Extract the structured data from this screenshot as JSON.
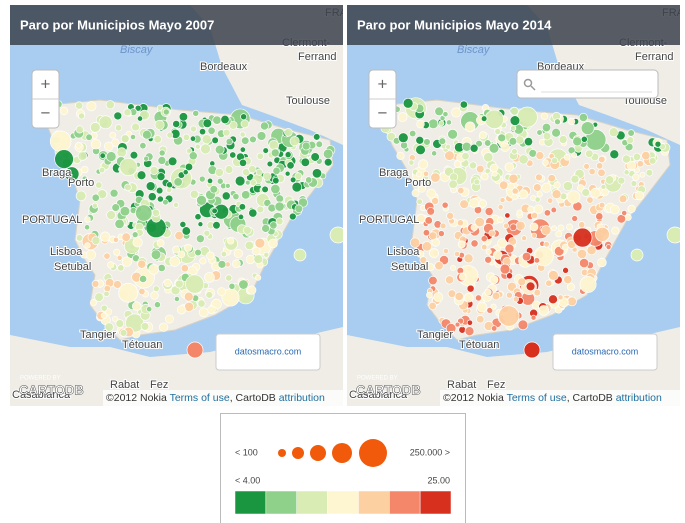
{
  "maps": [
    {
      "title": "Paro por Municipios Mayo 2007",
      "place_labels": [
        "FRANC",
        "Clermont-",
        "Ferrand",
        "Bordeaux",
        "Toulouse",
        "Biscay",
        "Braga",
        "Porto",
        "PORTUGAL",
        "Lisboa",
        "Setubal",
        "Tangier",
        "Tétouan",
        "Rabat",
        "Fez",
        "Casablanca"
      ],
      "zoom_in": "+",
      "zoom_out": "−",
      "watermark": "datosmacro.com",
      "powered_by": "POWERED BY",
      "logo": "CARTODB",
      "attribution": {
        "copyright": "©2012 Nokia ",
        "terms": "Terms of use",
        "cartodb": ", CartoDB ",
        "link": "attribution"
      }
    },
    {
      "title": "Paro por Municipios Mayo 2014",
      "place_labels": [
        "FRANC",
        "Clermont-",
        "Ferrand",
        "Bordeaux",
        "Toulouse",
        "Biscay",
        "Braga",
        "Porto",
        "PORTUGAL",
        "Lisboa",
        "Setubal",
        "Tangier",
        "Tétouan",
        "Rabat",
        "Fez",
        "Casablanca"
      ],
      "zoom_in": "+",
      "zoom_out": "−",
      "watermark": "datosmacro.com",
      "powered_by": "POWERED BY",
      "logo": "CARTODB",
      "attribution": {
        "copyright": "©2012 Nokia ",
        "terms": "Terms of use",
        "cartodb": ", CartoDB ",
        "link": "attribution"
      }
    }
  ],
  "legend": {
    "size_min": "< 100",
    "size_max": "250.000 >",
    "rate_min": "< 4.00",
    "rate_max": "25.00",
    "colors": [
      "#1a9641",
      "#8fd08a",
      "#d8ecb3",
      "#fef6d0",
      "#fdd0a2",
      "#f4876a",
      "#d7301f"
    ],
    "bubble_color": "#f05a0a"
  }
}
